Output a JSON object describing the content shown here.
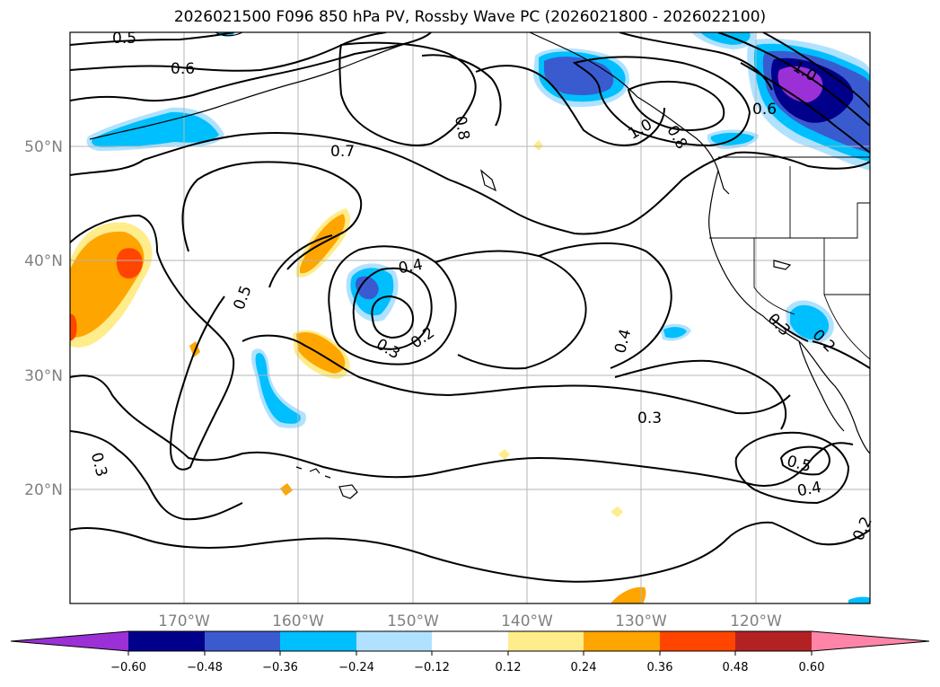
{
  "title": "2026021500 F096 850 hPa PV, Rossby Wave PC (2026021800 - 2026022100)",
  "map": {
    "lat_labels": [
      "50°N",
      "40°N",
      "30°N",
      "20°N"
    ],
    "lon_labels": [
      "170°W",
      "160°W",
      "150°W",
      "140°W",
      "130°W",
      "120°W"
    ],
    "contour_labels": [
      "0.5",
      "0.6",
      "0.7",
      "0.8",
      "1.0",
      "1.0",
      "0.8",
      "0.6",
      "0.4",
      "0.2",
      "0.3",
      "0.5",
      "0.4",
      "0.3",
      "0.3",
      "0.5",
      "0.4",
      "0.2",
      "0.3",
      "0.2"
    ]
  },
  "colorbar": {
    "ticks": [
      "−0.60",
      "−0.48",
      "−0.36",
      "−0.24",
      "−0.12",
      "0.12",
      "0.24",
      "0.36",
      "0.48",
      "0.60"
    ],
    "colors": [
      "#9b30d6",
      "#00008b",
      "#3a5bd0",
      "#00bfff",
      "#b0e2ff",
      "#ffffff",
      "#ffec8b",
      "#ffa500",
      "#ff4500",
      "#b22222",
      "#ff85a8"
    ]
  }
}
